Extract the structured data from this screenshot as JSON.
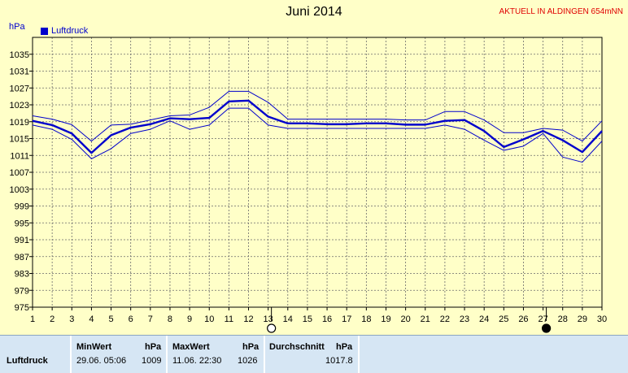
{
  "header": {
    "title": "Juni 2014",
    "station": "AKTUELL IN ALDINGEN 654mNN",
    "unit": "hPa"
  },
  "colors": {
    "series": "#0000cc",
    "background": "#ffffc8",
    "grid": "#6a6a6a",
    "moon": "#000000"
  },
  "icons": {
    "full_moon_day": 13,
    "new_moon_day": 27,
    "full_moon": "full-moon-icon",
    "new_moon": "new-moon-icon"
  },
  "chart_data": {
    "type": "line",
    "title": "Juni 2014",
    "ylabel": "hPa",
    "xlabel": "",
    "legend": "top-left",
    "grid": true,
    "ylim": [
      975,
      1039
    ],
    "yticks": [
      975,
      979,
      983,
      987,
      991,
      995,
      999,
      1003,
      1007,
      1011,
      1015,
      1019,
      1023,
      1027,
      1031,
      1035
    ],
    "x": [
      1,
      2,
      3,
      4,
      5,
      6,
      7,
      8,
      9,
      10,
      11,
      12,
      13,
      14,
      15,
      16,
      17,
      18,
      19,
      20,
      21,
      22,
      23,
      24,
      25,
      26,
      27,
      28,
      29,
      30
    ],
    "series": [
      {
        "name": "Luftdruck",
        "values": [
          1019.2,
          1018.2,
          1016.2,
          1011.6,
          1015.8,
          1017.6,
          1018.4,
          1019.8,
          1019.6,
          1019.9,
          1023.8,
          1024.0,
          1020.2,
          1018.6,
          1018.6,
          1018.4,
          1018.4,
          1018.6,
          1018.6,
          1018.3,
          1018.3,
          1019.2,
          1019.4,
          1016.8,
          1013.0,
          1014.8,
          1016.8,
          1014.6,
          1011.8,
          1016.8
        ]
      },
      {
        "name": "",
        "values": [
          1020.4,
          1019.6,
          1018.3,
          1014.4,
          1018.2,
          1018.4,
          1019.4,
          1020.4,
          1020.6,
          1022.4,
          1026.2,
          1026.2,
          1023.6,
          1019.6,
          1019.6,
          1019.6,
          1019.6,
          1019.6,
          1019.6,
          1019.4,
          1019.4,
          1021.4,
          1021.4,
          1019.4,
          1016.4,
          1016.4,
          1017.4,
          1017.0,
          1014.4,
          1019.2
        ]
      },
      {
        "name": "",
        "values": [
          1018.2,
          1017.2,
          1014.8,
          1010.2,
          1012.6,
          1016.2,
          1017.2,
          1019.2,
          1017.2,
          1018.2,
          1022.2,
          1022.2,
          1018.2,
          1017.4,
          1017.4,
          1017.4,
          1017.4,
          1017.4,
          1017.4,
          1017.4,
          1017.4,
          1018.2,
          1017.2,
          1014.6,
          1012.2,
          1013.2,
          1016.2,
          1010.6,
          1009.4,
          1014.4
        ]
      }
    ]
  },
  "stats": {
    "row_label": "Luftdruck",
    "min": {
      "header": "MinWert",
      "unit": "hPa",
      "datetime": "29.06.  05:06",
      "value": "1009"
    },
    "max": {
      "header": "MaxWert",
      "unit": "hPa",
      "datetime": "11.06.  22:30",
      "value": "1026"
    },
    "avg": {
      "header": "Durchschnitt",
      "unit": "hPa",
      "value": "1017.8"
    }
  }
}
